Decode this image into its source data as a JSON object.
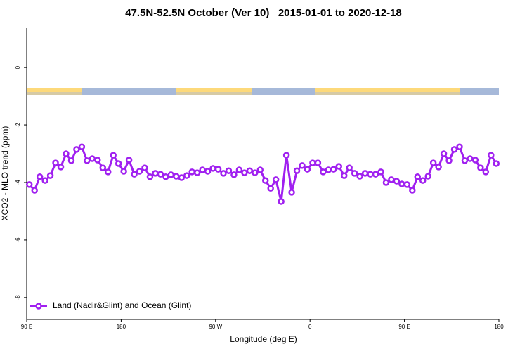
{
  "chart_data": {
    "type": "line",
    "title": "47.5N-52.5N October (Ver 10)   2015-01-01 to 2020-12-18",
    "xlabel": "Longitude (deg E)",
    "ylabel": "XCO2 - MLO trend (ppm)",
    "xlim": [
      90,
      540
    ],
    "ylim": [
      -8.76,
      1.37
    ],
    "xticks": [
      {
        "value": 90,
        "label": "90 E"
      },
      {
        "value": 180,
        "label": "180"
      },
      {
        "value": 270,
        "label": "90 W"
      },
      {
        "value": 360,
        "label": "0"
      },
      {
        "value": 450,
        "label": "90 E"
      },
      {
        "value": 540,
        "label": "180"
      }
    ],
    "yticks": [
      0,
      -2,
      -4,
      -6,
      -8
    ],
    "grid": false,
    "legend": "bottom-left",
    "x": [
      92.5,
      97.5,
      102.5,
      107.5,
      112.5,
      117.5,
      122.5,
      127.5,
      132.5,
      137.5,
      142.5,
      147.5,
      152.5,
      157.5,
      162.5,
      167.5,
      172.5,
      177.5,
      182.5,
      187.5,
      192.5,
      197.5,
      202.5,
      207.5,
      212.5,
      217.5,
      222.5,
      227.5,
      232.5,
      237.5,
      242.5,
      247.5,
      252.5,
      257.5,
      262.5,
      267.5,
      272.5,
      277.5,
      282.5,
      287.5,
      292.5,
      297.5,
      302.5,
      307.5,
      312.5,
      317.5,
      322.5,
      327.5,
      332.5,
      337.5,
      342.5,
      347.5,
      352.5,
      357.5,
      362.5,
      367.5,
      372.5,
      377.5,
      382.5,
      387.5,
      392.5,
      397.5,
      402.5,
      407.5,
      412.5,
      417.5,
      422.5,
      427.5,
      432.5,
      437.5,
      442.5,
      447.5,
      452.5,
      457.5,
      462.5,
      467.5,
      472.5,
      477.5,
      482.5,
      487.5,
      492.5,
      497.5,
      502.5,
      507.5,
      512.5,
      517.5,
      522.5,
      527.5,
      532.5,
      537.5
    ],
    "series": [
      {
        "name": "Land (Nadir&Glint) and Ocean (Glint)",
        "color": "#a020f0",
        "values": [
          -4.07,
          -4.27,
          -3.8,
          -3.93,
          -3.76,
          -3.32,
          -3.46,
          -3.0,
          -3.24,
          -2.85,
          -2.76,
          -3.24,
          -3.17,
          -3.22,
          -3.49,
          -3.63,
          -3.05,
          -3.34,
          -3.61,
          -3.22,
          -3.71,
          -3.61,
          -3.49,
          -3.8,
          -3.68,
          -3.71,
          -3.8,
          -3.73,
          -3.78,
          -3.83,
          -3.76,
          -3.63,
          -3.66,
          -3.56,
          -3.61,
          -3.51,
          -3.54,
          -3.68,
          -3.59,
          -3.73,
          -3.56,
          -3.66,
          -3.59,
          -3.66,
          -3.56,
          -3.93,
          -4.2,
          -3.9,
          -4.66,
          -3.05,
          -4.34,
          -3.59,
          -3.41,
          -3.54,
          -3.32,
          -3.32,
          -3.63,
          -3.56,
          -3.54,
          -3.44,
          -3.76,
          -3.49,
          -3.68,
          -3.78,
          -3.68,
          -3.71,
          -3.71,
          -3.63,
          -4.0,
          -3.9,
          -3.95,
          -4.05,
          -4.07,
          -4.27,
          -3.8,
          -3.93,
          -3.78,
          -3.32,
          -3.46,
          -3.0,
          -3.24,
          -2.85,
          -2.76,
          -3.24,
          -3.17,
          -3.22,
          -3.49,
          -3.63,
          -3.05,
          -3.34
        ]
      }
    ]
  }
}
